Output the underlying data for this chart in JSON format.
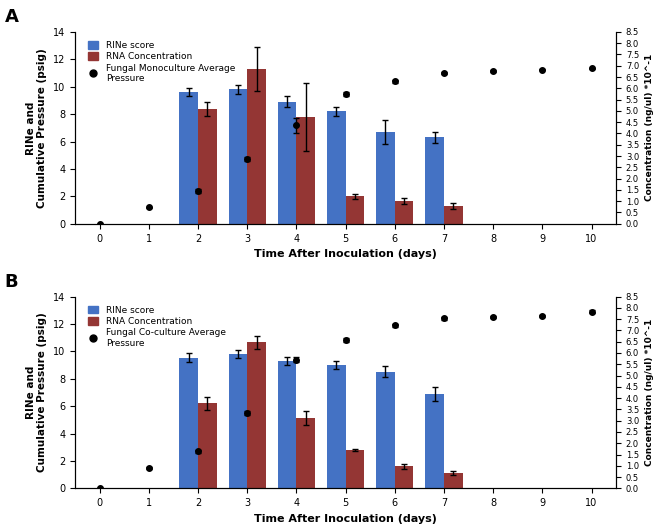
{
  "panel_A": {
    "title": "A",
    "legend_pressure": "Fungal Monoculture Average\nPressure",
    "days_bars": [
      2,
      3,
      4,
      5,
      6,
      7
    ],
    "rine_scores": [
      9.6,
      9.8,
      8.9,
      8.2,
      6.7,
      6.3
    ],
    "rine_errors": [
      0.3,
      0.3,
      0.4,
      0.3,
      0.9,
      0.4
    ],
    "rna_conc": [
      8.4,
      11.3,
      7.8,
      2.0,
      1.65,
      1.3
    ],
    "rna_errors": [
      0.5,
      1.6,
      2.5,
      0.2,
      0.2,
      0.2
    ],
    "days_pressure": [
      0,
      1,
      2,
      3,
      4,
      5,
      6,
      7,
      8,
      9,
      10
    ],
    "pressure_vals": [
      0.0,
      1.2,
      2.4,
      4.7,
      7.2,
      9.5,
      10.4,
      11.0,
      11.15,
      11.25,
      11.35
    ],
    "pressure_errors": [
      0.0,
      0.05,
      0.15,
      0.15,
      0.55,
      0.15,
      0.1,
      0.08,
      0.05,
      0.05,
      0.05
    ]
  },
  "panel_B": {
    "title": "B",
    "legend_pressure": "Fungal Co-culture Average\nPressure",
    "days_bars": [
      2,
      3,
      4,
      5,
      6,
      7
    ],
    "rine_scores": [
      9.55,
      9.8,
      9.3,
      9.0,
      8.5,
      6.9
    ],
    "rine_errors": [
      0.3,
      0.3,
      0.3,
      0.3,
      0.4,
      0.5
    ],
    "rna_conc": [
      6.2,
      10.65,
      5.15,
      2.8,
      1.6,
      1.15
    ],
    "rna_errors": [
      0.5,
      0.5,
      0.5,
      0.1,
      0.2,
      0.15
    ],
    "days_pressure": [
      0,
      1,
      2,
      3,
      4,
      5,
      6,
      7,
      8,
      9,
      10
    ],
    "pressure_vals": [
      0.0,
      1.5,
      2.7,
      5.5,
      9.4,
      10.8,
      11.9,
      12.4,
      12.5,
      12.6,
      12.9
    ],
    "pressure_errors": [
      0.02,
      0.05,
      0.1,
      0.12,
      0.2,
      0.15,
      0.1,
      0.1,
      0.1,
      0.08,
      0.1
    ]
  },
  "bar_width": 0.38,
  "blue_color": "#4472C4",
  "red_color": "#943634",
  "scatter_color": "black",
  "xlabel": "Time After Inoculation (days)",
  "ylabel_left": "RINe and\nCumulative Pressure (psig)",
  "ylabel_right": "Concentration (ng/ul) *10^-1",
  "ylim_left": [
    0,
    14
  ],
  "xticks": [
    0,
    1,
    2,
    3,
    4,
    5,
    6,
    7,
    8,
    9,
    10
  ],
  "yticks_left": [
    0,
    2,
    4,
    6,
    8,
    10,
    12,
    14
  ],
  "right_tick_labels": [
    "0.0",
    "0.5",
    "1.0",
    "1.5",
    "2.0",
    "2.5",
    "3.0",
    "3.5",
    "4.0",
    "4.5",
    "5.0",
    "5.5",
    "6.0",
    "6.5",
    "7.0",
    "7.5",
    "8.0",
    "8.5"
  ],
  "right_tick_conc_vals": [
    0.0,
    0.5,
    1.0,
    1.5,
    2.0,
    2.5,
    3.0,
    3.5,
    4.0,
    4.5,
    5.0,
    5.5,
    6.0,
    6.5,
    7.0,
    7.5,
    8.0,
    8.5
  ]
}
